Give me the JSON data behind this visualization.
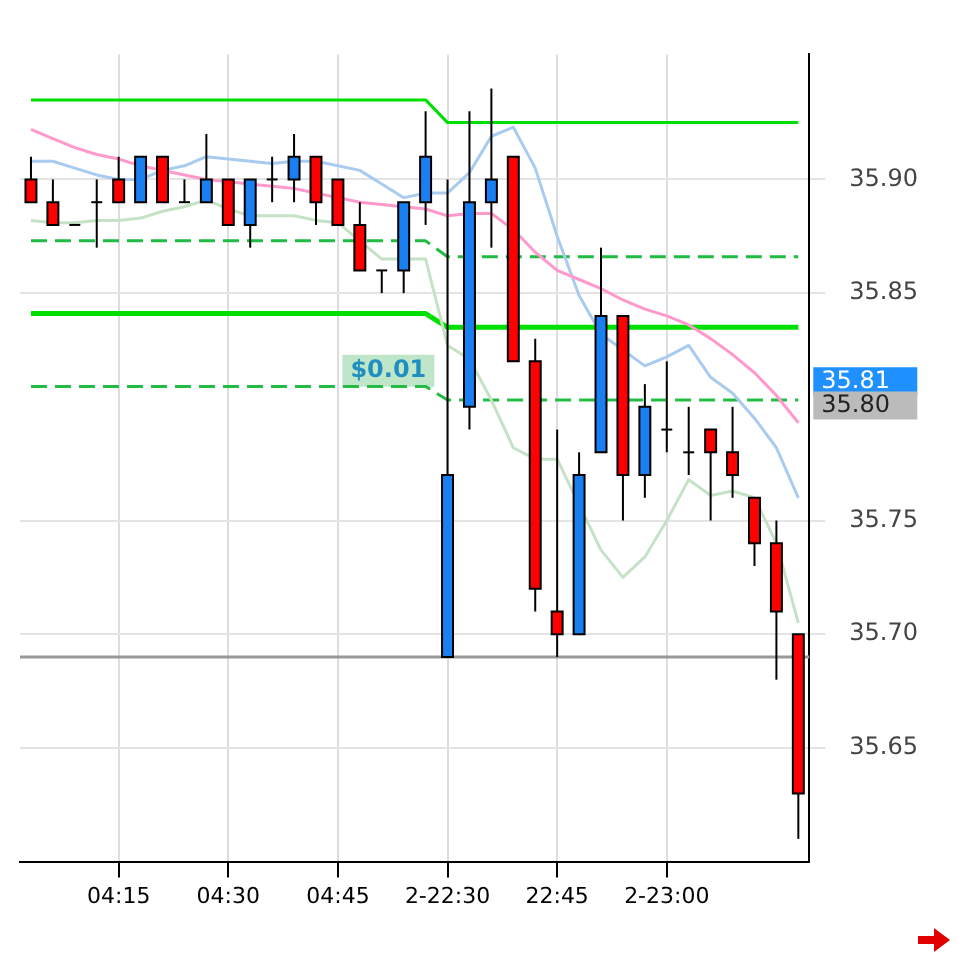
{
  "chart_data": {
    "type": "candlestick",
    "categories": [
      null,
      null,
      null,
      null,
      "04:15",
      null,
      null,
      null,
      null,
      "04:30",
      null,
      null,
      null,
      null,
      "04:45",
      null,
      null,
      null,
      null,
      "2-22:30",
      null,
      null,
      null,
      null,
      "22:45",
      null,
      null,
      null,
      null,
      "2-23:00",
      null,
      null,
      null,
      null,
      null,
      null
    ],
    "ohlc": [
      [
        35.9,
        35.91,
        35.89,
        35.89
      ],
      [
        35.89,
        35.9,
        35.88,
        35.88
      ],
      [
        35.88,
        35.88,
        35.88,
        35.88
      ],
      [
        35.89,
        35.9,
        35.87,
        35.89
      ],
      [
        35.9,
        35.91,
        35.89,
        35.89
      ],
      [
        35.89,
        35.91,
        35.89,
        35.91
      ],
      [
        35.91,
        35.91,
        35.89,
        35.89
      ],
      [
        35.89,
        35.9,
        35.89,
        35.89
      ],
      [
        35.89,
        35.92,
        35.89,
        35.9
      ],
      [
        35.9,
        35.9,
        35.88,
        35.88
      ],
      [
        35.88,
        35.9,
        35.87,
        35.9
      ],
      [
        35.9,
        35.91,
        35.89,
        35.9
      ],
      [
        35.9,
        35.92,
        35.89,
        35.91
      ],
      [
        35.91,
        35.91,
        35.88,
        35.89
      ],
      [
        35.9,
        35.9,
        35.88,
        35.88
      ],
      [
        35.88,
        35.89,
        35.86,
        35.86
      ],
      [
        35.86,
        35.86,
        35.85,
        35.86
      ],
      [
        35.86,
        35.89,
        35.85,
        35.89
      ],
      [
        35.89,
        35.93,
        35.88,
        35.91
      ],
      [
        35.69,
        35.9,
        35.69,
        35.77
      ],
      [
        35.8,
        35.93,
        35.79,
        35.89
      ],
      [
        35.89,
        35.94,
        35.87,
        35.9
      ],
      [
        35.91,
        35.91,
        35.82,
        35.82
      ],
      [
        35.82,
        35.83,
        35.71,
        35.72
      ],
      [
        35.71,
        35.79,
        35.69,
        35.7
      ],
      [
        35.7,
        35.78,
        35.7,
        35.77
      ],
      [
        35.78,
        35.87,
        35.78,
        35.84
      ],
      [
        35.84,
        35.84,
        35.75,
        35.77
      ],
      [
        35.77,
        35.81,
        35.76,
        35.8
      ],
      [
        35.79,
        35.82,
        35.78,
        35.79
      ],
      [
        35.78,
        35.8,
        35.77,
        35.78
      ],
      [
        35.79,
        35.79,
        35.75,
        35.78
      ],
      [
        35.78,
        35.8,
        35.76,
        35.77
      ],
      [
        35.76,
        35.76,
        35.73,
        35.74
      ],
      [
        35.74,
        35.75,
        35.68,
        35.71
      ],
      [
        35.7,
        35.7,
        35.61,
        35.63
      ]
    ],
    "colors": [
      "#ff0000",
      "#ff0000",
      "#000000",
      "#000000",
      "#ff0000",
      "#1a7ff0",
      "#ff0000",
      "#000000",
      "#1a7ff0",
      "#ff0000",
      "#1a7ff0",
      "#000000",
      "#1a7ff0",
      "#ff0000",
      "#ff0000",
      "#ff0000",
      "#000000",
      "#1a7ff0",
      "#1a7ff0",
      "#1a7ff0",
      "#1a7ff0",
      "#1a7ff0",
      "#ff0000",
      "#ff0000",
      "#ff0000",
      "#1a7ff0",
      "#1a7ff0",
      "#ff0000",
      "#1a7ff0",
      "#000000",
      "#000000",
      "#ff0000",
      "#ff0000",
      "#ff0000",
      "#ff0000",
      "#ff0000"
    ],
    "series": [
      {
        "type": "line",
        "color": "#ff99cc",
        "values": [
          35.922,
          35.918,
          35.914,
          35.911,
          35.909,
          35.906,
          35.904,
          35.902,
          35.9,
          35.899,
          35.898,
          35.897,
          35.896,
          35.894,
          35.892,
          35.89,
          35.889,
          35.888,
          35.887,
          35.884,
          35.885,
          35.885,
          35.878,
          35.868,
          35.86,
          35.856,
          35.852,
          35.847,
          35.843,
          35.84,
          35.836,
          35.83,
          35.823,
          35.815,
          35.805,
          35.793
        ]
      },
      {
        "type": "line",
        "color": "#a9cbf0",
        "values": [
          35.908,
          35.908,
          35.905,
          35.902,
          35.9,
          35.9,
          35.904,
          35.906,
          35.91,
          35.909,
          35.908,
          35.907,
          35.908,
          35.908,
          35.906,
          35.904,
          35.898,
          35.892,
          35.894,
          35.894,
          35.903,
          35.919,
          35.923,
          35.905,
          35.875,
          35.849,
          35.832,
          35.825,
          35.818,
          35.822,
          35.827,
          35.813,
          35.806,
          35.795,
          35.782,
          35.76
        ]
      },
      {
        "type": "line",
        "color": "#c6e2c6",
        "values": [
          35.882,
          35.881,
          35.881,
          35.882,
          35.882,
          35.883,
          35.886,
          35.888,
          35.891,
          35.887,
          35.884,
          35.884,
          35.884,
          35.882,
          35.881,
          35.873,
          35.865,
          35.865,
          35.865,
          35.827,
          35.821,
          35.803,
          35.782,
          35.777,
          35.777,
          null,
          35.737,
          35.725,
          35.734,
          35.75,
          35.768,
          35.761,
          35.763,
          35.76,
          35.74,
          35.705
        ]
      },
      {
        "type": "line",
        "color": "#00e000",
        "values": [
          35.935,
          35.935,
          35.935,
          35.935,
          35.935,
          35.935,
          35.935,
          35.935,
          35.935,
          35.935,
          35.935,
          35.935,
          35.935,
          35.935,
          35.935,
          35.935,
          35.935,
          35.935,
          35.935,
          35.925,
          35.925,
          35.925,
          35.925,
          35.925,
          35.925,
          35.925,
          35.925,
          35.925,
          35.925,
          35.925,
          35.925,
          35.925,
          35.925,
          35.925,
          35.925,
          35.925
        ]
      },
      {
        "type": "line",
        "color": "#00e000",
        "values": [
          35.841,
          35.841,
          35.841,
          35.841,
          35.841,
          35.841,
          35.841,
          35.841,
          35.841,
          35.841,
          35.841,
          35.841,
          35.841,
          35.841,
          35.841,
          35.841,
          35.841,
          35.841,
          35.841,
          35.835,
          35.835,
          35.835,
          35.835,
          35.835,
          35.835,
          35.835,
          35.835,
          35.835,
          35.835,
          35.835,
          35.835,
          35.835,
          35.835,
          35.835,
          35.835,
          35.835
        ]
      },
      {
        "type": "line",
        "color": "#22bb44",
        "line_style": "dashed",
        "values": [
          35.873,
          35.873,
          35.873,
          35.873,
          35.873,
          35.873,
          35.873,
          35.873,
          35.873,
          35.873,
          35.873,
          35.873,
          35.873,
          35.873,
          35.873,
          35.873,
          35.873,
          35.873,
          35.873,
          35.866,
          35.866,
          35.866,
          35.866,
          35.866,
          35.866,
          35.866,
          35.866,
          35.866,
          35.866,
          35.866,
          35.866,
          35.866,
          35.866,
          35.866,
          35.866,
          35.866
        ]
      },
      {
        "type": "line",
        "color": "#22bb44",
        "line_style": "dashed",
        "values": [
          35.809,
          35.809,
          35.809,
          35.809,
          35.809,
          35.809,
          35.809,
          35.809,
          35.809,
          35.809,
          35.809,
          35.809,
          35.809,
          35.809,
          35.809,
          35.809,
          35.809,
          35.809,
          35.809,
          35.803,
          35.803,
          35.803,
          35.803,
          35.803,
          35.803,
          35.803,
          35.803,
          35.803,
          35.803,
          35.803,
          35.803,
          35.803,
          35.803,
          35.803,
          35.803,
          35.803
        ]
      }
    ],
    "ylim": [
      35.6,
      35.955
    ],
    "yticks": [
      {
        "value": 35.65,
        "label": "35.65"
      },
      {
        "value": 35.7,
        "label": "35.70"
      },
      {
        "value": 35.75,
        "label": "35.75"
      },
      {
        "value": 35.85,
        "label": "35.85"
      },
      {
        "value": 35.9,
        "label": "35.90"
      }
    ],
    "ref_lines": [
      {
        "axis": "y",
        "value": 35.69,
        "color": "#999999"
      }
    ],
    "annotations": [
      "35.81",
      "35.80",
      "$0.01"
    ],
    "grid": true,
    "legend": false,
    "marker": "none"
  }
}
